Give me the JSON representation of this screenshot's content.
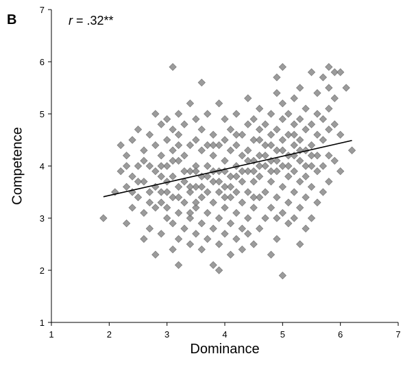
{
  "chart_data": {
    "type": "scatter",
    "panel_label": "B",
    "annotation": {
      "italic": "r",
      "rest": " = .32**"
    },
    "xlabel": "Dominance",
    "ylabel": "Competence",
    "xlim": [
      1,
      7
    ],
    "ylim": [
      1,
      7
    ],
    "xticks": [
      1,
      2,
      3,
      4,
      5,
      6,
      7
    ],
    "yticks": [
      1,
      2,
      3,
      4,
      5,
      6,
      7
    ],
    "grid": false,
    "marker": "diamond",
    "marker_color": "#8a8a8a",
    "marker_edge": "#6e6e6e",
    "trendline": {
      "x": [
        1.9,
        6.2
      ],
      "y": [
        3.41,
        4.49
      ],
      "color": "#000000"
    },
    "points": [
      [
        1.9,
        3.0
      ],
      [
        2.1,
        3.5
      ],
      [
        2.2,
        3.9
      ],
      [
        2.2,
        4.4
      ],
      [
        2.3,
        2.9
      ],
      [
        2.3,
        3.6
      ],
      [
        2.3,
        4.2
      ],
      [
        2.4,
        3.2
      ],
      [
        2.4,
        3.8
      ],
      [
        2.4,
        4.5
      ],
      [
        2.5,
        3.4
      ],
      [
        2.5,
        4.0
      ],
      [
        2.5,
        4.7
      ],
      [
        2.6,
        2.6
      ],
      [
        2.6,
        3.1
      ],
      [
        2.6,
        3.7
      ],
      [
        2.6,
        4.3
      ],
      [
        2.7,
        2.8
      ],
      [
        2.7,
        3.5
      ],
      [
        2.7,
        4.0
      ],
      [
        2.7,
        4.6
      ],
      [
        2.8,
        2.3
      ],
      [
        2.8,
        3.2
      ],
      [
        2.8,
        3.9
      ],
      [
        2.8,
        4.4
      ],
      [
        2.8,
        5.0
      ],
      [
        2.9,
        2.7
      ],
      [
        2.9,
        3.3
      ],
      [
        2.9,
        3.8
      ],
      [
        2.9,
        4.2
      ],
      [
        2.9,
        4.8
      ],
      [
        3.0,
        3.0
      ],
      [
        3.0,
        3.5
      ],
      [
        3.0,
        4.0
      ],
      [
        3.0,
        4.5
      ],
      [
        3.0,
        4.9
      ],
      [
        3.1,
        2.4
      ],
      [
        3.1,
        2.9
      ],
      [
        3.1,
        3.4
      ],
      [
        3.1,
        3.8
      ],
      [
        3.1,
        4.3
      ],
      [
        3.1,
        4.7
      ],
      [
        3.1,
        5.9
      ],
      [
        3.2,
        2.1
      ],
      [
        3.2,
        2.6
      ],
      [
        3.2,
        3.1
      ],
      [
        3.2,
        3.6
      ],
      [
        3.2,
        4.1
      ],
      [
        3.2,
        4.6
      ],
      [
        3.2,
        5.0
      ],
      [
        3.3,
        2.8
      ],
      [
        3.3,
        3.3
      ],
      [
        3.3,
        3.7
      ],
      [
        3.3,
        4.2
      ],
      [
        3.3,
        4.8
      ],
      [
        3.4,
        2.5
      ],
      [
        3.4,
        3.0
      ],
      [
        3.4,
        3.5
      ],
      [
        3.4,
        3.9
      ],
      [
        3.4,
        4.4
      ],
      [
        3.4,
        5.2
      ],
      [
        3.5,
        2.7
      ],
      [
        3.5,
        3.2
      ],
      [
        3.5,
        3.6
      ],
      [
        3.5,
        4.0
      ],
      [
        3.5,
        4.5
      ],
      [
        3.5,
        4.9
      ],
      [
        3.6,
        2.4
      ],
      [
        3.6,
        2.9
      ],
      [
        3.6,
        3.4
      ],
      [
        3.6,
        3.8
      ],
      [
        3.6,
        4.3
      ],
      [
        3.6,
        4.7
      ],
      [
        3.6,
        5.6
      ],
      [
        3.7,
        2.6
      ],
      [
        3.7,
        3.1
      ],
      [
        3.7,
        3.5
      ],
      [
        3.7,
        4.0
      ],
      [
        3.7,
        4.4
      ],
      [
        3.7,
        5.0
      ],
      [
        3.8,
        2.1
      ],
      [
        3.8,
        2.8
      ],
      [
        3.8,
        3.3
      ],
      [
        3.8,
        3.7
      ],
      [
        3.8,
        4.2
      ],
      [
        3.8,
        4.6
      ],
      [
        3.9,
        2.0
      ],
      [
        3.9,
        2.5
      ],
      [
        3.9,
        3.0
      ],
      [
        3.9,
        3.5
      ],
      [
        3.9,
        3.9
      ],
      [
        3.9,
        4.4
      ],
      [
        3.9,
        5.2
      ],
      [
        4.0,
        2.7
      ],
      [
        4.0,
        3.2
      ],
      [
        4.0,
        3.6
      ],
      [
        4.0,
        4.1
      ],
      [
        4.0,
        4.5
      ],
      [
        4.0,
        4.9
      ],
      [
        4.1,
        2.3
      ],
      [
        4.1,
        2.9
      ],
      [
        4.1,
        3.4
      ],
      [
        4.1,
        3.8
      ],
      [
        4.1,
        4.3
      ],
      [
        4.1,
        4.7
      ],
      [
        4.2,
        2.6
      ],
      [
        4.2,
        3.1
      ],
      [
        4.2,
        3.5
      ],
      [
        4.2,
        4.0
      ],
      [
        4.2,
        4.4
      ],
      [
        4.2,
        5.0
      ],
      [
        4.3,
        2.4
      ],
      [
        4.3,
        2.8
      ],
      [
        4.3,
        3.3
      ],
      [
        4.3,
        3.7
      ],
      [
        4.3,
        4.2
      ],
      [
        4.3,
        4.6
      ],
      [
        4.4,
        2.7
      ],
      [
        4.4,
        3.0
      ],
      [
        4.4,
        3.5
      ],
      [
        4.4,
        3.9
      ],
      [
        4.4,
        4.3
      ],
      [
        4.4,
        4.8
      ],
      [
        4.4,
        5.3
      ],
      [
        4.5,
        2.5
      ],
      [
        4.5,
        3.2
      ],
      [
        4.5,
        3.7
      ],
      [
        4.5,
        4.1
      ],
      [
        4.5,
        4.5
      ],
      [
        4.5,
        4.9
      ],
      [
        4.6,
        2.8
      ],
      [
        4.6,
        3.4
      ],
      [
        4.6,
        3.8
      ],
      [
        4.6,
        4.2
      ],
      [
        4.6,
        4.7
      ],
      [
        4.6,
        5.1
      ],
      [
        4.7,
        3.0
      ],
      [
        4.7,
        3.5
      ],
      [
        4.7,
        4.0
      ],
      [
        4.7,
        4.4
      ],
      [
        4.7,
        4.8
      ],
      [
        4.8,
        2.3
      ],
      [
        4.8,
        3.2
      ],
      [
        4.8,
        3.7
      ],
      [
        4.8,
        4.1
      ],
      [
        4.8,
        4.6
      ],
      [
        4.8,
        5.0
      ],
      [
        4.9,
        2.6
      ],
      [
        4.9,
        3.0
      ],
      [
        4.9,
        3.4
      ],
      [
        4.9,
        3.9
      ],
      [
        4.9,
        4.3
      ],
      [
        4.9,
        4.7
      ],
      [
        4.9,
        5.4
      ],
      [
        4.9,
        5.7
      ],
      [
        5.0,
        1.9
      ],
      [
        5.0,
        3.1
      ],
      [
        5.0,
        3.6
      ],
      [
        5.0,
        4.0
      ],
      [
        5.0,
        4.5
      ],
      [
        5.0,
        4.9
      ],
      [
        5.0,
        5.2
      ],
      [
        5.0,
        5.9
      ],
      [
        5.1,
        2.9
      ],
      [
        5.1,
        3.3
      ],
      [
        5.1,
        3.8
      ],
      [
        5.1,
        4.2
      ],
      [
        5.1,
        4.6
      ],
      [
        5.1,
        5.0
      ],
      [
        5.2,
        3.0
      ],
      [
        5.2,
        3.5
      ],
      [
        5.2,
        3.9
      ],
      [
        5.2,
        4.4
      ],
      [
        5.2,
        4.8
      ],
      [
        5.2,
        5.3
      ],
      [
        5.3,
        2.5
      ],
      [
        5.3,
        3.2
      ],
      [
        5.3,
        3.7
      ],
      [
        5.3,
        4.1
      ],
      [
        5.3,
        4.5
      ],
      [
        5.3,
        4.9
      ],
      [
        5.3,
        5.5
      ],
      [
        5.4,
        2.8
      ],
      [
        5.4,
        3.4
      ],
      [
        5.4,
        3.8
      ],
      [
        5.4,
        4.3
      ],
      [
        5.4,
        4.7
      ],
      [
        5.4,
        5.1
      ],
      [
        5.5,
        3.0
      ],
      [
        5.5,
        3.6
      ],
      [
        5.5,
        4.0
      ],
      [
        5.5,
        4.4
      ],
      [
        5.5,
        4.8
      ],
      [
        5.5,
        5.8
      ],
      [
        5.6,
        3.3
      ],
      [
        5.6,
        3.9
      ],
      [
        5.6,
        4.2
      ],
      [
        5.6,
        4.6
      ],
      [
        5.6,
        5.0
      ],
      [
        5.6,
        5.4
      ],
      [
        5.7,
        3.5
      ],
      [
        5.7,
        4.0
      ],
      [
        5.7,
        4.5
      ],
      [
        5.7,
        4.9
      ],
      [
        5.7,
        5.7
      ],
      [
        5.8,
        3.7
      ],
      [
        5.8,
        4.2
      ],
      [
        5.8,
        4.7
      ],
      [
        5.8,
        5.1
      ],
      [
        5.8,
        5.5
      ],
      [
        5.8,
        5.9
      ],
      [
        5.9,
        4.1
      ],
      [
        5.9,
        4.8
      ],
      [
        5.9,
        5.3
      ],
      [
        5.9,
        5.8
      ],
      [
        6.0,
        3.9
      ],
      [
        6.0,
        4.6
      ],
      [
        6.0,
        5.8
      ],
      [
        6.1,
        5.5
      ],
      [
        6.2,
        4.3
      ],
      [
        2.3,
        4.0
      ],
      [
        2.4,
        3.5
      ],
      [
        2.5,
        3.7
      ],
      [
        2.6,
        4.1
      ],
      [
        2.7,
        3.3
      ],
      [
        2.8,
        3.6
      ],
      [
        2.9,
        4.0
      ],
      [
        3.0,
        3.7
      ],
      [
        3.1,
        4.1
      ],
      [
        3.2,
        3.4
      ],
      [
        3.3,
        3.9
      ],
      [
        3.4,
        3.6
      ],
      [
        3.5,
        3.9
      ],
      [
        3.6,
        3.6
      ],
      [
        3.7,
        3.8
      ],
      [
        3.8,
        3.9
      ],
      [
        3.9,
        3.7
      ],
      [
        4.0,
        3.9
      ],
      [
        4.1,
        3.6
      ],
      [
        4.2,
        3.8
      ],
      [
        4.3,
        3.9
      ],
      [
        4.4,
        4.1
      ],
      [
        4.5,
        3.9
      ],
      [
        4.6,
        4.0
      ],
      [
        4.7,
        4.2
      ],
      [
        4.8,
        3.9
      ],
      [
        4.9,
        4.1
      ],
      [
        5.0,
        4.3
      ],
      [
        5.1,
        4.0
      ],
      [
        5.2,
        4.2
      ],
      [
        5.3,
        4.3
      ],
      [
        5.4,
        4.0
      ],
      [
        5.5,
        4.2
      ],
      [
        3.0,
        3.2
      ],
      [
        3.5,
        3.3
      ],
      [
        4.0,
        3.4
      ],
      [
        4.5,
        3.4
      ],
      [
        3.2,
        4.4
      ],
      [
        3.8,
        4.4
      ],
      [
        4.2,
        4.6
      ],
      [
        4.6,
        4.5
      ],
      [
        3.4,
        3.1
      ],
      [
        4.8,
        4.4
      ],
      [
        2.9,
        3.5
      ],
      [
        5.2,
        4.6
      ]
    ]
  }
}
